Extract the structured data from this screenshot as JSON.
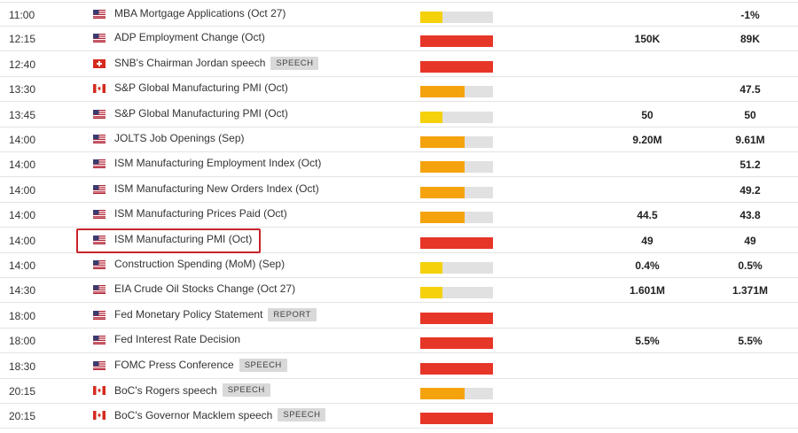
{
  "colors": {
    "impact_low": "#f4d10b",
    "impact_medium": "#f5a30d",
    "impact_high": "#e63628",
    "impact_track": "#e1e1e1",
    "highlight": "#c8242a"
  },
  "events": [
    {
      "time": "11:00",
      "flag": "us-flag-icon",
      "name": "MBA Mortgage Applications (Oct 27)",
      "tag": "",
      "impact": "low",
      "actual": "",
      "previous": "-1%"
    },
    {
      "time": "12:15",
      "flag": "us-flag-icon",
      "name": "ADP Employment Change (Oct)",
      "tag": "",
      "impact": "high",
      "actual": "150K",
      "previous": "89K"
    },
    {
      "time": "12:40",
      "flag": "ch-flag-icon",
      "name": "SNB's Chairman Jordan speech",
      "tag": "SPEECH",
      "impact": "high",
      "actual": "",
      "previous": ""
    },
    {
      "time": "13:30",
      "flag": "ca-flag-icon",
      "name": "S&P Global Manufacturing PMI (Oct)",
      "tag": "",
      "impact": "medium",
      "actual": "",
      "previous": "47.5"
    },
    {
      "time": "13:45",
      "flag": "us-flag-icon",
      "name": "S&P Global Manufacturing PMI (Oct)",
      "tag": "",
      "impact": "low",
      "actual": "50",
      "previous": "50"
    },
    {
      "time": "14:00",
      "flag": "us-flag-icon",
      "name": "JOLTS Job Openings (Sep)",
      "tag": "",
      "impact": "medium",
      "actual": "9.20M",
      "previous": "9.61M"
    },
    {
      "time": "14:00",
      "flag": "us-flag-icon",
      "name": "ISM Manufacturing Employment Index (Oct)",
      "tag": "",
      "impact": "medium",
      "actual": "",
      "previous": "51.2"
    },
    {
      "time": "14:00",
      "flag": "us-flag-icon",
      "name": "ISM Manufacturing New Orders Index (Oct)",
      "tag": "",
      "impact": "medium",
      "actual": "",
      "previous": "49.2"
    },
    {
      "time": "14:00",
      "flag": "us-flag-icon",
      "name": "ISM Manufacturing Prices Paid (Oct)",
      "tag": "",
      "impact": "medium",
      "actual": "44.5",
      "previous": "43.8"
    },
    {
      "time": "14:00",
      "flag": "us-flag-icon",
      "name": "ISM Manufacturing PMI (Oct)",
      "tag": "",
      "impact": "high",
      "actual": "49",
      "previous": "49",
      "highlighted": true
    },
    {
      "time": "14:00",
      "flag": "us-flag-icon",
      "name": "Construction Spending (MoM) (Sep)",
      "tag": "",
      "impact": "low",
      "actual": "0.4%",
      "previous": "0.5%"
    },
    {
      "time": "14:30",
      "flag": "us-flag-icon",
      "name": "EIA Crude Oil Stocks Change (Oct 27)",
      "tag": "",
      "impact": "low",
      "actual": "1.601M",
      "previous": "1.371M"
    },
    {
      "time": "18:00",
      "flag": "us-flag-icon",
      "name": "Fed Monetary Policy Statement",
      "tag": "REPORT",
      "impact": "high",
      "actual": "",
      "previous": ""
    },
    {
      "time": "18:00",
      "flag": "us-flag-icon",
      "name": "Fed Interest Rate Decision",
      "tag": "",
      "impact": "high",
      "actual": "5.5%",
      "previous": "5.5%"
    },
    {
      "time": "18:30",
      "flag": "us-flag-icon",
      "name": "FOMC Press Conference",
      "tag": "SPEECH",
      "impact": "high",
      "actual": "",
      "previous": ""
    },
    {
      "time": "20:15",
      "flag": "ca-flag-icon",
      "name": "BoC's Rogers speech",
      "tag": "SPEECH",
      "impact": "medium",
      "actual": "",
      "previous": ""
    },
    {
      "time": "20:15",
      "flag": "ca-flag-icon",
      "name": "BoC's Governor Macklem speech",
      "tag": "SPEECH",
      "impact": "high",
      "actual": "",
      "previous": ""
    }
  ]
}
